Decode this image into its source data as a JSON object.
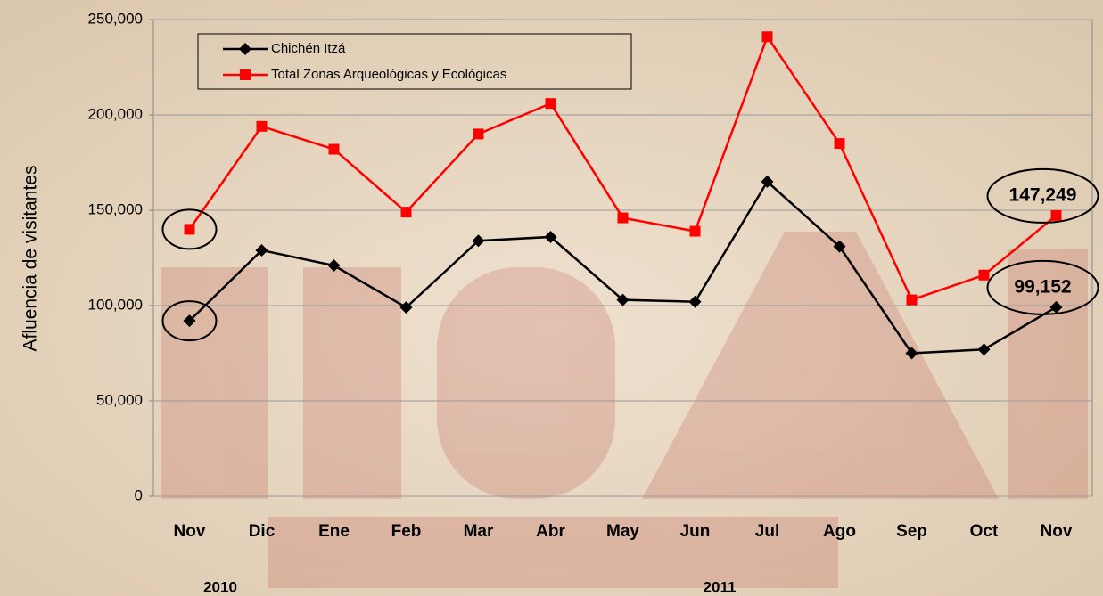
{
  "chart_data": {
    "type": "line",
    "y_axis_label": "Afluencia de visitantes",
    "categories": [
      "Nov",
      "Dic",
      "Ene",
      "Feb",
      "Mar",
      "Abr",
      "May",
      "Jun",
      "Jul",
      "Ago",
      "Sep",
      "Oct",
      "Nov"
    ],
    "x_group_labels": [
      "2010",
      "2011"
    ],
    "series": [
      {
        "name": "Chichén Itzá",
        "color": "#000000",
        "marker": "diamond",
        "values": [
          92000,
          129000,
          121000,
          99000,
          134000,
          136000,
          103000,
          102000,
          165000,
          131000,
          75000,
          77000,
          99152
        ],
        "value_labels": [
          null,
          null,
          null,
          null,
          null,
          null,
          null,
          null,
          null,
          null,
          null,
          null,
          "99,152"
        ]
      },
      {
        "name": "Total Zonas Arqueológicas y Ecológicas",
        "color": "#ff0000",
        "marker": "square",
        "values": [
          140000,
          194000,
          182000,
          149000,
          190000,
          206000,
          146000,
          139000,
          241000,
          185000,
          103000,
          116000,
          147249
        ],
        "value_labels": [
          null,
          null,
          null,
          null,
          null,
          null,
          null,
          null,
          null,
          null,
          null,
          null,
          "147,249"
        ]
      }
    ],
    "ylim": [
      0,
      250000
    ],
    "yticks": [
      0,
      {
        "value": 50000,
        "label": "50,000"
      },
      {
        "value": 100000,
        "label": "100,000"
      },
      {
        "value": 150000,
        "label": "150,000"
      },
      {
        "value": 200000,
        "label": "200,000"
      },
      {
        "value": 250000,
        "label": "250,000"
      }
    ],
    "grid": true,
    "legend": "top-left"
  }
}
